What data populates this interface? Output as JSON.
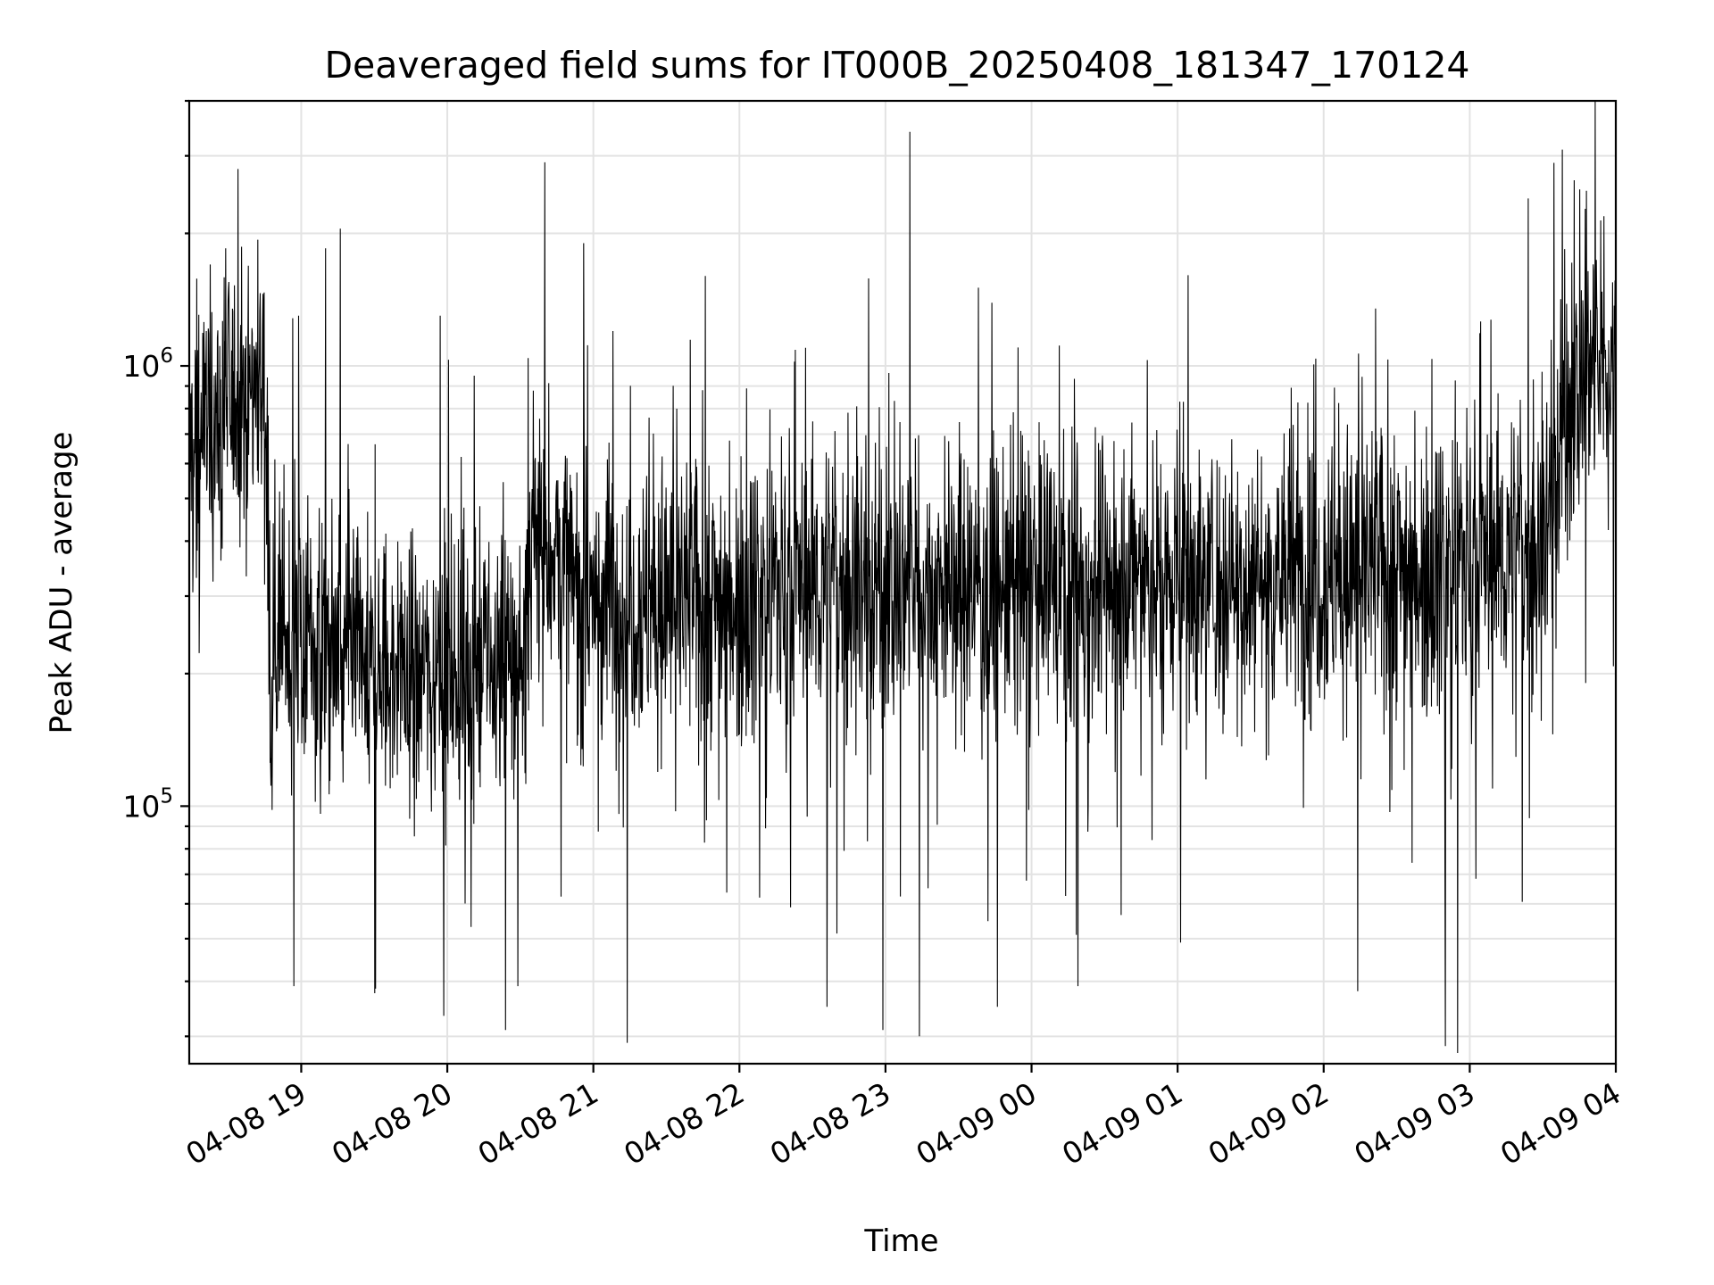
{
  "chart_data": {
    "type": "line",
    "title": "Deaveraged field sums for IT000B_20250408_181347_170124",
    "xlabel": "Time",
    "ylabel": "Peak ADU - average",
    "yscale": "log",
    "grid": true,
    "x_start": "2025-04-08 18:14",
    "x_end": "2025-04-09 04:00",
    "xlim": [
      "2025-04-08 18:14",
      "2025-04-09 04:00"
    ],
    "ylim": [
      26000,
      4000000
    ],
    "x_ticks": [
      "04-08 19",
      "04-08 20",
      "04-08 21",
      "04-08 22",
      "04-08 23",
      "04-09 00",
      "04-09 01",
      "04-09 02",
      "04-09 03",
      "04-09 04"
    ],
    "y_ticks": [
      {
        "value": 100000,
        "base": "10",
        "exp": "5"
      },
      {
        "value": 1000000,
        "base": "10",
        "exp": "6"
      }
    ],
    "series": [
      {
        "color": "#000000",
        "profile": [
          [
            "2025-04-08 18:14",
            650000
          ],
          [
            "2025-04-08 18:30",
            800000
          ],
          [
            "2025-04-08 18:45",
            950000
          ],
          [
            "2025-04-08 18:47",
            250000
          ],
          [
            "2025-04-08 19:30",
            200000
          ],
          [
            "2025-04-08 20:30",
            210000
          ],
          [
            "2025-04-08 20:36",
            400000
          ],
          [
            "2025-04-08 20:45",
            380000
          ],
          [
            "2025-04-08 20:52",
            300000
          ],
          [
            "2025-04-08 21:30",
            290000
          ],
          [
            "2025-04-08 22:30",
            320000
          ],
          [
            "2025-04-08 23:30",
            310000
          ],
          [
            "2025-04-09 00:30",
            320000
          ],
          [
            "2025-04-09 01:30",
            330000
          ],
          [
            "2025-04-09 02:30",
            350000
          ],
          [
            "2025-04-09 03:30",
            380000
          ],
          [
            "2025-04-09 03:35",
            600000
          ],
          [
            "2025-04-09 03:45",
            950000
          ],
          [
            "2025-04-09 04:00",
            1000000
          ]
        ],
        "peaks": [
          [
            "2025-04-08 18:21",
            1200000
          ],
          [
            "2025-04-08 18:29",
            1850000
          ],
          [
            "2025-04-08 18:34",
            2800000
          ],
          [
            "2025-04-08 18:59",
            1300000
          ],
          [
            "2025-04-08 19:10",
            1850000
          ],
          [
            "2025-04-08 19:16",
            2050000
          ],
          [
            "2025-04-08 19:57",
            1300000
          ],
          [
            "2025-04-08 20:11",
            950000
          ],
          [
            "2025-04-08 20:40",
            2900000
          ],
          [
            "2025-04-08 20:56",
            1900000
          ],
          [
            "2025-04-08 21:08",
            1200000
          ],
          [
            "2025-04-08 21:46",
            1600000
          ],
          [
            "2025-04-08 23:10",
            3400000
          ],
          [
            "2025-04-09 03:24",
            2400000
          ],
          [
            "2025-04-09 03:38",
            3100000
          ],
          [
            "2025-04-09 03:48",
            2500000
          ]
        ],
        "troughs": [
          [
            "2025-04-08 18:57",
            39000
          ],
          [
            "2025-04-08 20:24",
            31000
          ],
          [
            "2025-04-08 20:29",
            39000
          ],
          [
            "2025-04-08 21:14",
            29000
          ],
          [
            "2025-04-08 22:36",
            35000
          ],
          [
            "2025-04-08 22:59",
            31000
          ],
          [
            "2025-04-08 23:14",
            30000
          ],
          [
            "2025-04-08 23:46",
            35000
          ],
          [
            "2025-04-09 00:19",
            39000
          ],
          [
            "2025-04-09 02:14",
            38000
          ],
          [
            "2025-04-09 02:50",
            28500
          ],
          [
            "2025-04-09 02:55",
            27500
          ]
        ]
      }
    ]
  }
}
